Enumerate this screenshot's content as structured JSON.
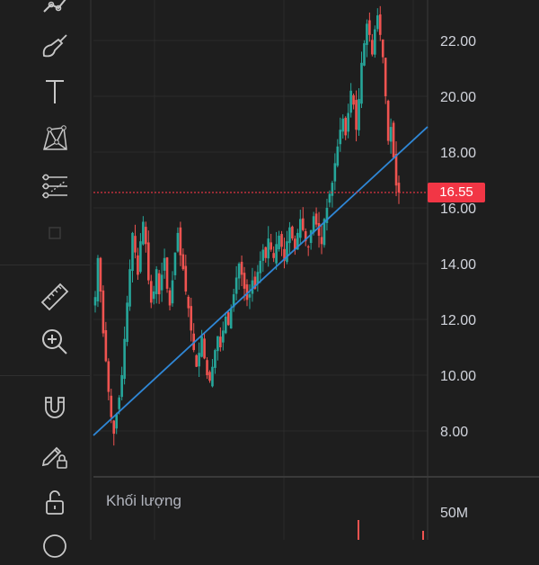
{
  "toolbar": {
    "tools": [
      {
        "name": "trend-line-icon"
      },
      {
        "name": "brush-icon"
      },
      {
        "name": "text-icon"
      },
      {
        "name": "pattern-icon"
      },
      {
        "name": "prediction-icon"
      },
      {
        "name": "icon-placeholder"
      },
      {
        "name": "ruler-icon"
      },
      {
        "name": "zoom-in-icon"
      },
      {
        "name": "magnet-icon"
      },
      {
        "name": "lock-drawing-icon"
      },
      {
        "name": "unlock-icon"
      }
    ]
  },
  "price_label": "16.55",
  "volume_title": "Khối lượng",
  "colors": {
    "up": "#26a69a",
    "down": "#ef5350",
    "trend": "#2f87d6",
    "marker": "#f23645",
    "bg": "#1e1e1e",
    "grid": "#2b2b2b"
  },
  "chart_data": {
    "type": "candlestick",
    "y_axis_ticks": [
      "22.00",
      "20.00",
      "18.00",
      "16.00",
      "14.00",
      "12.00",
      "10.00",
      "8.00"
    ],
    "ylim": [
      6.5,
      23.5
    ],
    "last_price": 16.55,
    "volume_axis_ticks": [
      "50M"
    ],
    "trendline": {
      "from": {
        "index": 0,
        "price": 7.9
      },
      "to": {
        "index": 110,
        "price": 17.6
      }
    },
    "close_series": [
      12.8,
      14.2,
      13.0,
      11.5,
      10.5,
      9.4,
      8.5,
      7.9,
      8.6,
      9.2,
      10.0,
      11.3,
      12.6,
      13.8,
      15.1,
      14.4,
      13.6,
      14.8,
      15.5,
      14.7,
      13.4,
      12.6,
      13.0,
      13.8,
      12.9,
      13.6,
      14.2,
      13.1,
      12.5,
      13.4,
      14.4,
      15.1,
      14.3,
      13.8,
      13.0,
      12.4,
      11.6,
      10.9,
      10.3,
      10.8,
      11.4,
      10.6,
      10.0,
      9.8,
      10.3,
      10.9,
      11.4,
      11.0,
      11.6,
      12.1,
      11.8,
      12.4,
      12.9,
      13.5,
      14.0,
      13.6,
      13.1,
      12.7,
      12.9,
      13.4,
      13.1,
      13.7,
      14.1,
      14.5,
      14.2,
      14.9,
      14.5,
      14.2,
      14.7,
      15.0,
      14.6,
      14.1,
      14.8,
      15.3,
      14.9,
      14.5,
      15.1,
      15.6,
      15.2,
      14.8,
      14.6,
      15.2,
      15.7,
      15.4,
      15.0,
      14.7,
      15.6,
      16.0,
      16.5,
      16.9,
      17.6,
      18.2,
      18.8,
      19.2,
      18.6,
      19.4,
      20.2,
      19.7,
      18.8,
      19.9,
      21.2,
      21.9,
      22.6,
      22.2,
      21.5,
      22.4,
      22.9,
      22.2,
      21.4,
      20.0,
      18.4,
      18.9,
      17.8,
      16.8,
      16.55
    ]
  }
}
